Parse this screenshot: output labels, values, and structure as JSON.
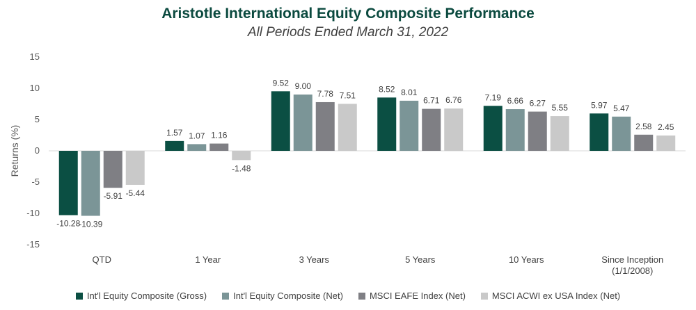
{
  "chart_data": {
    "type": "bar",
    "title": "Aristotle International Equity Composite Performance",
    "subtitle": "All Periods Ended March 31, 2022",
    "ylabel": "Returns (%)",
    "xlabel": "",
    "ylim": [
      -15,
      15
    ],
    "yticks": [
      15,
      10,
      5,
      0,
      -5,
      -10,
      -15
    ],
    "categories": [
      [
        "QTD"
      ],
      [
        "1 Year"
      ],
      [
        "3 Years"
      ],
      [
        "5 Years"
      ],
      [
        "10 Years"
      ],
      [
        "Since Inception",
        "(1/1/2008)"
      ]
    ],
    "series": [
      {
        "name": "Int'l Equity Composite (Gross)",
        "color": "#0b4f43",
        "values": [
          -10.28,
          1.57,
          9.52,
          8.52,
          7.19,
          5.97
        ]
      },
      {
        "name": "Int'l Equity Composite (Net)",
        "color": "#7b9597",
        "values": [
          -10.39,
          1.07,
          9.0,
          8.01,
          6.66,
          5.47
        ]
      },
      {
        "name": "MSCI EAFE Index (Net)",
        "color": "#7f7f84",
        "values": [
          -5.91,
          1.16,
          7.78,
          6.71,
          6.27,
          2.58
        ]
      },
      {
        "name": "MSCI ACWI ex USA Index (Net)",
        "color": "#c9c9c9",
        "values": [
          -5.44,
          -1.48,
          7.51,
          6.76,
          5.55,
          2.45
        ]
      }
    ],
    "legend_position": "bottom",
    "grid": false
  }
}
